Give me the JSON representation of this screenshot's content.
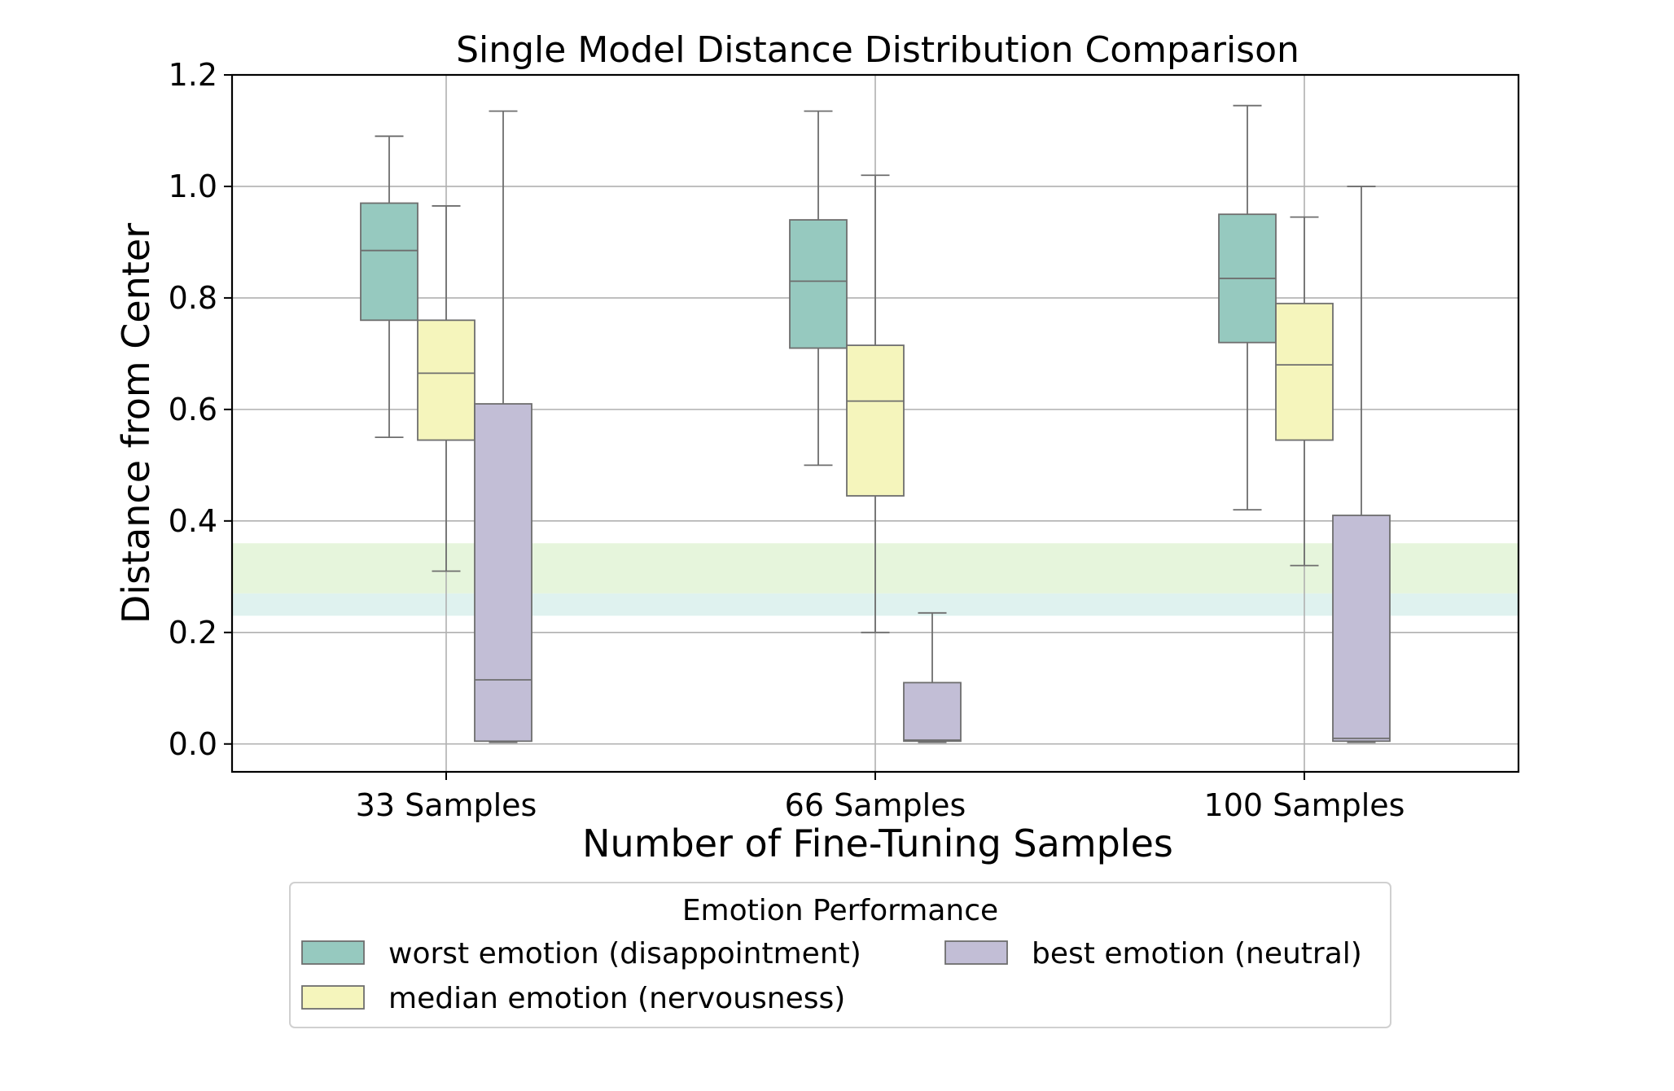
{
  "chart_data": {
    "type": "box",
    "title": "Single Model Distance Distribution Comparison",
    "xlabel": "Number of Fine-Tuning Samples",
    "ylabel": "Distance from Center",
    "ylim": [
      -0.05,
      1.2
    ],
    "yticks": [
      0.0,
      0.2,
      0.4,
      0.6,
      0.8,
      1.0,
      1.2
    ],
    "ytick_labels": [
      "0.0",
      "0.2",
      "0.4",
      "0.6",
      "0.8",
      "1.0",
      "1.2"
    ],
    "categories": [
      "33 Samples",
      "66 Samples",
      "100 Samples"
    ],
    "grid": true,
    "bands": [
      {
        "y0": 0.27,
        "y1": 0.36,
        "color": "#e6f5dc"
      },
      {
        "y0": 0.23,
        "y1": 0.27,
        "color": "#dff2ef"
      }
    ],
    "series": [
      {
        "name": "worst emotion (disappointment)",
        "color": "#96c9bf",
        "boxes": [
          {
            "whislo": 0.55,
            "q1": 0.76,
            "med": 0.885,
            "q3": 0.97,
            "whishi": 1.09
          },
          {
            "whislo": 0.5,
            "q1": 0.71,
            "med": 0.83,
            "q3": 0.94,
            "whishi": 1.135
          },
          {
            "whislo": 0.42,
            "q1": 0.72,
            "med": 0.835,
            "q3": 0.95,
            "whishi": 1.145
          }
        ]
      },
      {
        "name": "median emotion (nervousness)",
        "color": "#f5f5bc",
        "boxes": [
          {
            "whislo": 0.31,
            "q1": 0.545,
            "med": 0.665,
            "q3": 0.76,
            "whishi": 0.965
          },
          {
            "whislo": 0.2,
            "q1": 0.445,
            "med": 0.615,
            "q3": 0.715,
            "whishi": 1.02
          },
          {
            "whislo": 0.32,
            "q1": 0.545,
            "med": 0.68,
            "q3": 0.79,
            "whishi": 0.945
          }
        ]
      },
      {
        "name": "best emotion (neutral)",
        "color": "#c2bed6",
        "boxes": [
          {
            "whislo": 0.003,
            "q1": 0.005,
            "med": 0.115,
            "q3": 0.61,
            "whishi": 1.135
          },
          {
            "whislo": 0.003,
            "q1": 0.005,
            "med": 0.007,
            "q3": 0.11,
            "whishi": 0.235
          },
          {
            "whislo": 0.003,
            "q1": 0.005,
            "med": 0.01,
            "q3": 0.41,
            "whishi": 1.0
          }
        ]
      }
    ],
    "legend": {
      "title": "Emotion Performance",
      "placement": "below"
    }
  }
}
